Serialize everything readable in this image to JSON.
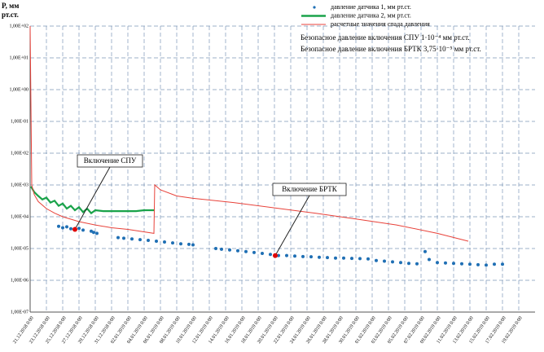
{
  "chart_data": {
    "type": "scatter-line",
    "y_label": "P, мм рт.ст.",
    "log_y": true,
    "grid": true,
    "ylim": [
      1e-07,
      100
    ],
    "yticks": [
      {
        "value": 1e-07,
        "label": "1,00E-07"
      },
      {
        "value": 1e-06,
        "label": "1,00E-06"
      },
      {
        "value": 1e-05,
        "label": "1,00E-05"
      },
      {
        "value": 0.0001,
        "label": "1,00E-04"
      },
      {
        "value": 0.001,
        "label": "1,00E-03"
      },
      {
        "value": 0.01,
        "label": "1,00E-02"
      },
      {
        "value": 0.1,
        "label": "1,00E-01"
      },
      {
        "value": 1,
        "label": "1,00E+00"
      },
      {
        "value": 10,
        "label": "1,00E+01"
      },
      {
        "value": 100,
        "label": "1,00E+02"
      }
    ],
    "xlim": [
      0,
      61
    ],
    "xticks": [
      {
        "value": 0,
        "label": "21.12.2018 0:00"
      },
      {
        "value": 2,
        "label": "23.12.2018 0:00"
      },
      {
        "value": 4,
        "label": "25.12.2018 0:00"
      },
      {
        "value": 6,
        "label": "27.12.2018 0:00"
      },
      {
        "value": 8,
        "label": "29.12.2018 0:00"
      },
      {
        "value": 10,
        "label": "31.12.2018 0:00"
      },
      {
        "value": 12,
        "label": "02.01.2019 0:00"
      },
      {
        "value": 14,
        "label": "04.01.2019 0:00"
      },
      {
        "value": 16,
        "label": "06.01.2019 0:00"
      },
      {
        "value": 18,
        "label": "08.01.2019 0:00"
      },
      {
        "value": 20,
        "label": "10.01.2019 0:00"
      },
      {
        "value": 22,
        "label": "12.01.2019 0:00"
      },
      {
        "value": 24,
        "label": "14.01.2019 0:00"
      },
      {
        "value": 26,
        "label": "16.01.2019 0:00"
      },
      {
        "value": 28,
        "label": "18.01.2019 0:00"
      },
      {
        "value": 30,
        "label": "20.01.2019 0:00"
      },
      {
        "value": 32,
        "label": "22.01.2019 0:00"
      },
      {
        "value": 34,
        "label": "24.01.2019 0:00"
      },
      {
        "value": 36,
        "label": "26.01.2019 0:00"
      },
      {
        "value": 38,
        "label": "28.01.2019 0:00"
      },
      {
        "value": 40,
        "label": "30.01.2019 0:00"
      },
      {
        "value": 42,
        "label": "01.02.2019 0:00"
      },
      {
        "value": 44,
        "label": "03.02.2019 0:00"
      },
      {
        "value": 46,
        "label": "05.02.2019 0:00"
      },
      {
        "value": 48,
        "label": "07.02.2019 0:00"
      },
      {
        "value": 50,
        "label": "09.02.2019 0:00"
      },
      {
        "value": 52,
        "label": "11.02.2019 0:00"
      },
      {
        "value": 54,
        "label": "13.02.2019 0:00"
      },
      {
        "value": 56,
        "label": "15.02.2019 0:00"
      },
      {
        "value": 58,
        "label": "17.02.2019 0:00"
      },
      {
        "value": 60,
        "label": "19.02.2019 0:00"
      }
    ],
    "series": [
      {
        "name": "давление датчика 1, мм рт.ст.",
        "kind": "scatter",
        "color": "#1f6fb4",
        "x": [
          3.5,
          4,
          4.5,
          5,
          5.5,
          6,
          6.5,
          7.5,
          7.8,
          8.2,
          10.8,
          11.5,
          12.5,
          13.5,
          14.5,
          15.5,
          16.5,
          17.5,
          18.5,
          19.5,
          20,
          22.8,
          23.5,
          24.5,
          25.5,
          26.5,
          27.5,
          28.5,
          29.5,
          30.5,
          31.5,
          32.5,
          33.5,
          34.5,
          35.5,
          36.5,
          37.5,
          38.5,
          39.5,
          40.5,
          41.5,
          42.5,
          43.5,
          44.5,
          45.5,
          46.5,
          47.5,
          48.5,
          49,
          50,
          51,
          52,
          53,
          54,
          55,
          56,
          57,
          58
        ],
        "values": [
          5e-05,
          4.5e-05,
          4.8e-05,
          4.2e-05,
          4e-05,
          4.3e-05,
          3.8e-05,
          3.5e-05,
          3.2e-05,
          3e-05,
          2.2e-05,
          2.1e-05,
          2e-05,
          1.9e-05,
          1.8e-05,
          1.7e-05,
          1.6e-05,
          1.5e-05,
          1.4e-05,
          1.35e-05,
          1.3e-05,
          1e-05,
          9.5e-06,
          9e-06,
          8.5e-06,
          8e-06,
          7.5e-06,
          7e-06,
          6.5e-06,
          6e-06,
          6e-06,
          5.8e-06,
          5.6e-06,
          5.5e-06,
          5.3e-06,
          5.2e-06,
          5e-06,
          5e-06,
          4.9e-06,
          4.8e-06,
          4.7e-06,
          4.2e-06,
          4e-06,
          3.8e-06,
          3.6e-06,
          3.4e-06,
          3.3e-06,
          8e-06,
          4.5e-06,
          3.6e-06,
          3.5e-06,
          3.4e-06,
          3.3e-06,
          3.2e-06,
          3.1e-06,
          3e-06,
          3.2e-06,
          3.2e-06
        ]
      },
      {
        "name": "давление датчика 2, мм рт.ст.",
        "kind": "line",
        "color": "#1aa34a",
        "x": [
          0.1,
          0.5,
          1,
          1.5,
          2,
          2.5,
          3,
          3.5,
          4,
          4.5,
          5,
          5.5,
          6,
          6.5,
          7,
          7.5,
          8,
          9,
          10,
          11,
          12,
          13,
          14,
          15,
          15.3
        ],
        "values": [
          0.0009,
          0.0006,
          0.00045,
          0.00035,
          0.0004,
          0.00028,
          0.00032,
          0.00022,
          0.00026,
          0.00018,
          0.00022,
          0.00016,
          0.0002,
          0.00014,
          0.00018,
          0.00013,
          0.00016,
          0.00015,
          0.00015,
          0.00015,
          0.00015,
          0.00015,
          0.00016,
          0.00016,
          0.00016
        ]
      },
      {
        "name": "расчетные значения спада давления",
        "kind": "line",
        "color": "#e8423a",
        "x": [
          0,
          0.2,
          0.5,
          1,
          2,
          3,
          4,
          6,
          8,
          10,
          12,
          15.2,
          15.3,
          16,
          18,
          20,
          25,
          30,
          35,
          40,
          45,
          50,
          53.8
        ],
        "values": [
          100,
          0.001,
          0.0005,
          0.0003,
          0.00018,
          0.00013,
          0.0001,
          7e-05,
          5.5e-05,
          4.5e-05,
          4e-05,
          3e-05,
          0.001,
          0.0007,
          0.00045,
          0.00038,
          0.00028,
          0.00019,
          0.00013,
          8.5e-05,
          5.5e-05,
          3e-05,
          1.7e-05
        ]
      }
    ],
    "notes": [
      "Безопасное давление включения СПУ 1·10⁻⁴ мм рт.ст.",
      "Безопасное давление включения БРТК 3,75·10⁻⁵ мм рт.ст."
    ],
    "annotations": [
      {
        "text": "Включение СПУ",
        "x": 5.5,
        "y": 4e-05,
        "color": "#e00000"
      },
      {
        "text": "Включение БРТК",
        "x": 30.1,
        "y": 6e-06,
        "color": "#e00000"
      }
    ]
  }
}
